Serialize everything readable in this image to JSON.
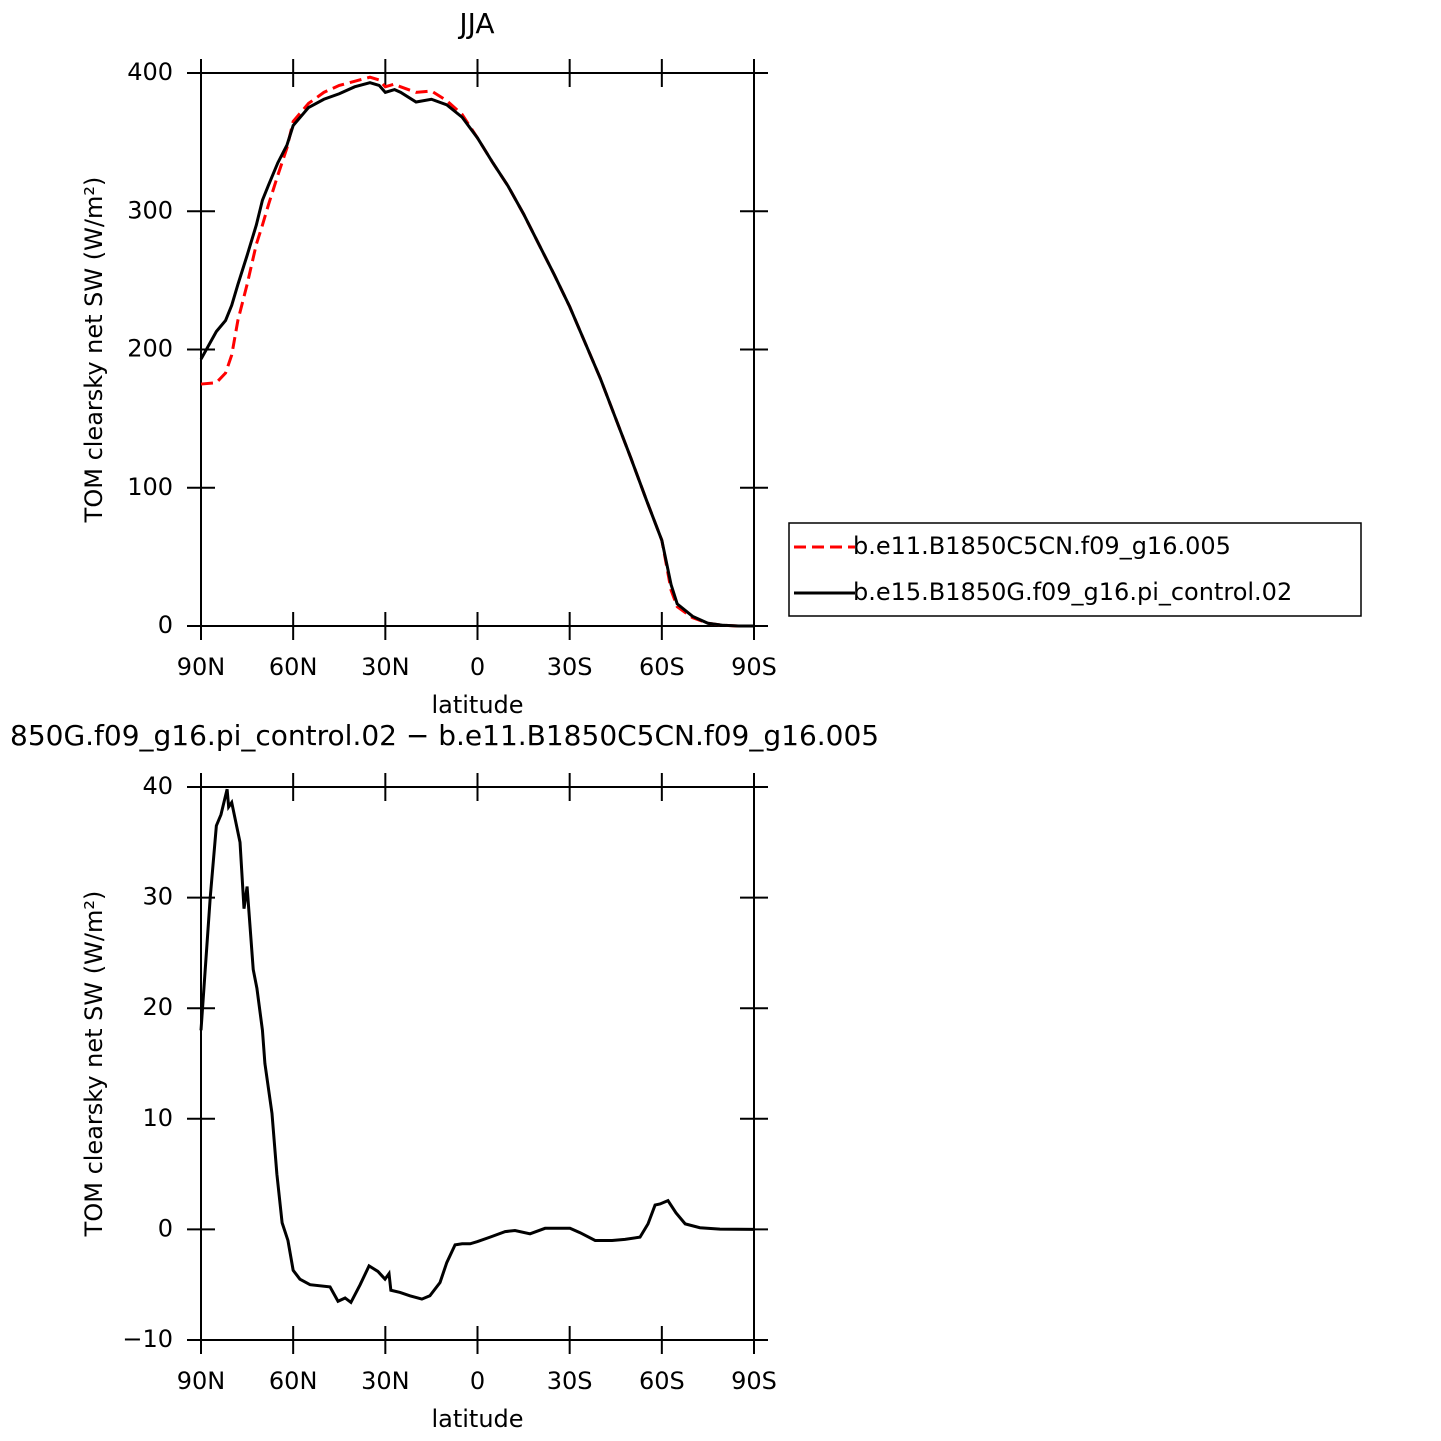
{
  "chart_data": [
    {
      "type": "line",
      "title": "JJA",
      "xlabel": "latitude",
      "ylabel": "TOM clearsky net SW (W/m²)",
      "x": [
        90,
        85,
        82,
        80,
        78,
        75,
        72,
        70,
        68,
        65,
        62,
        60,
        55,
        50,
        45,
        40,
        35,
        32,
        30,
        27,
        25,
        20,
        15,
        10,
        5,
        0,
        -5,
        -10,
        -15,
        -20,
        -25,
        -30,
        -35,
        -40,
        -45,
        -50,
        -55,
        -60,
        -63,
        -65,
        -70,
        -75,
        -80,
        -85,
        -90
      ],
      "series": [
        {
          "name": "b.e11.B1850C5CN.f09_g16.005",
          "color": "#ff0000",
          "line_style": "dashed",
          "values": [
            175,
            176,
            183,
            196,
            221,
            247,
            276,
            290,
            305,
            326,
            346,
            365,
            378,
            386,
            391,
            394,
            397,
            395,
            390,
            392,
            390,
            386,
            387,
            380,
            370,
            353,
            335,
            318,
            298,
            276,
            254,
            231,
            205,
            179,
            150,
            121,
            91,
            62,
            26,
            14,
            6,
            2,
            0.5,
            0,
            0
          ]
        },
        {
          "name": "b.e15.B1850G.f09_g16.pi_control.02",
          "color": "#000000",
          "line_style": "solid",
          "values": [
            193,
            213,
            221,
            232,
            247,
            268,
            290,
            308,
            319,
            335,
            348,
            362,
            375,
            381,
            385,
            390,
            393,
            391,
            386,
            388,
            386,
            379,
            381,
            377,
            368,
            353,
            335,
            318,
            298,
            276,
            254,
            231,
            205,
            179,
            150,
            121,
            91,
            62,
            30,
            16,
            7,
            2,
            0.5,
            0,
            0
          ]
        }
      ],
      "xlim": [
        90,
        -90
      ],
      "xticks": [
        {
          "value": 90,
          "label": "90N"
        },
        {
          "value": 60,
          "label": "60N"
        },
        {
          "value": 30,
          "label": "30N"
        },
        0,
        {
          "value": -30,
          "label": "30S"
        },
        {
          "value": -60,
          "label": "60S"
        },
        {
          "value": -90,
          "label": "90S"
        }
      ],
      "ylim": [
        0,
        400
      ],
      "yticks": [
        0,
        100,
        200,
        300,
        400
      ],
      "legend": "right"
    },
    {
      "type": "line",
      "title": "850G.f09_g16.pi_control.02 − b.e11.B1850C5CN.f09_g16.005",
      "xlabel": "latitude",
      "ylabel": "TOM clearsky net SW (W/m²)",
      "x": [
        90,
        87,
        85,
        83.5,
        81.5,
        81,
        80,
        77.3,
        76,
        75,
        73,
        71.8,
        70,
        69.2,
        66.9,
        65.3,
        63.6,
        61.7,
        60,
        57.8,
        54.5,
        48,
        45.4,
        43.1,
        41.2,
        38.2,
        35.3,
        32.4,
        30.1,
        28.8,
        28.2,
        25.2,
        22,
        18.1,
        15.5,
        12.2,
        10,
        7.3,
        5,
        2.4,
        0,
        -4.1,
        -9,
        -12.2,
        -17.1,
        -22,
        -30.1,
        -33.4,
        -38.3,
        -43.8,
        -48,
        -52.9,
        -55.5,
        -57.8,
        -59.4,
        -62,
        -64.6,
        -67.6,
        -72.4,
        -78.9,
        -90
      ],
      "color": "#000000",
      "values": [
        18,
        30,
        36.5,
        37.5,
        39.8,
        38.2,
        38.6,
        35,
        29,
        31,
        23.5,
        21.8,
        18,
        15,
        10.5,
        5,
        0.6,
        -1,
        -3.7,
        -4.5,
        -5,
        -5.2,
        -6.5,
        -6.2,
        -6.6,
        -5,
        -3.3,
        -3.8,
        -4.5,
        -4,
        -5.5,
        -5.7,
        -6,
        -6.3,
        -6,
        -4.8,
        -3,
        -1.4,
        -1.3,
        -1.3,
        -1.1,
        -0.7,
        -0.2,
        -0.1,
        -0.4,
        0.1,
        0.1,
        -0.3,
        -1,
        -1,
        -0.9,
        -0.7,
        0.5,
        2.2,
        2.3,
        2.6,
        1.5,
        0.5,
        0.15,
        0.02,
        0
      ],
      "xlim": [
        90,
        -90
      ],
      "xticks": [
        {
          "value": 90,
          "label": "90N"
        },
        {
          "value": 60,
          "label": "60N"
        },
        {
          "value": 30,
          "label": "30N"
        },
        0,
        {
          "value": -30,
          "label": "30S"
        },
        {
          "value": -60,
          "label": "60S"
        },
        {
          "value": -90,
          "label": "90S"
        }
      ],
      "ylim": [
        -10,
        40
      ],
      "yticks": [
        {
          "value": -10,
          "label": "−10"
        },
        0,
        10,
        20,
        30,
        40
      ]
    }
  ]
}
